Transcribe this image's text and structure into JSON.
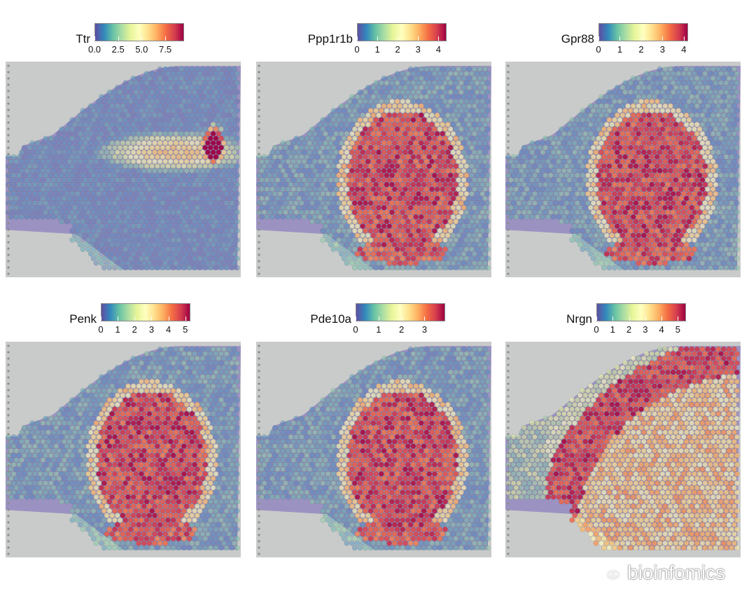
{
  "chart_data": [
    {
      "type": "heatmap",
      "gene": "Ttr",
      "ticks": [
        "0.0",
        "2.5",
        "5.0",
        "7.5"
      ],
      "range": [
        0,
        9.5
      ],
      "pattern": "choroid-plexus",
      "colormap": "Spectral (reversed)"
    },
    {
      "type": "heatmap",
      "gene": "Ppp1r1b",
      "ticks": [
        "0",
        "1",
        "2",
        "3",
        "4"
      ],
      "range": [
        0,
        4.4
      ],
      "pattern": "striatum",
      "colormap": "Spectral (reversed)"
    },
    {
      "type": "heatmap",
      "gene": "Gpr88",
      "ticks": [
        "0",
        "1",
        "2",
        "3",
        "4"
      ],
      "range": [
        0,
        4.2
      ],
      "pattern": "striatum",
      "colormap": "Spectral (reversed)"
    },
    {
      "type": "heatmap",
      "gene": "Penk",
      "ticks": [
        "0",
        "1",
        "2",
        "3",
        "4",
        "5"
      ],
      "range": [
        0,
        5.3
      ],
      "pattern": "striatum",
      "colormap": "Spectral (reversed)"
    },
    {
      "type": "heatmap",
      "gene": "Pde10a",
      "ticks": [
        "0",
        "1",
        "2",
        "3"
      ],
      "range": [
        0,
        3.9
      ],
      "pattern": "striatum",
      "colormap": "Spectral (reversed)"
    },
    {
      "type": "heatmap",
      "gene": "Nrgn",
      "ticks": [
        "0",
        "1",
        "2",
        "3",
        "4",
        "5"
      ],
      "range": [
        0,
        5.5
      ],
      "pattern": "cortex",
      "colormap": "Spectral (reversed)"
    }
  ],
  "colors": {
    "spectral": [
      "#5e4fa2",
      "#3288bd",
      "#66c2a5",
      "#abdda4",
      "#e6f598",
      "#ffffbf",
      "#fee08b",
      "#fdae61",
      "#f46d43",
      "#d53e4f",
      "#9e0142"
    ],
    "background": "#c9cbca",
    "tissue": "#8c7fbf"
  },
  "watermark": {
    "icon": "wechat-icon",
    "text": "bioinfomics"
  }
}
